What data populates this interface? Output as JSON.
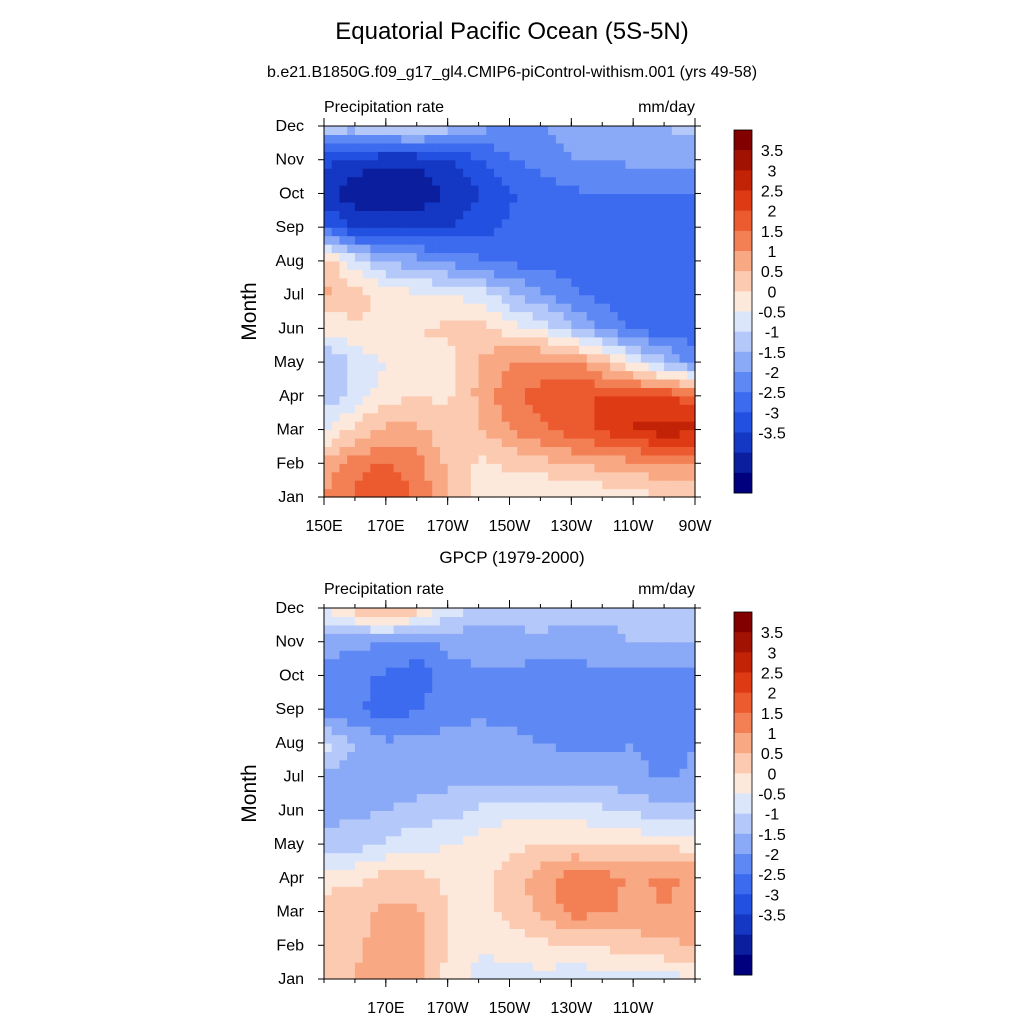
{
  "title": "Equatorial Pacific Ocean (5S-5N)",
  "subtitle": "b.e21.B1850G.f09_g17_gl4.CMIP6-piControl-withism.001 (yrs 49-58)",
  "colors": {
    "bin_colors": [
      "#00007f",
      "#0a1e9e",
      "#1437c4",
      "#2250e0",
      "#3d6bef",
      "#5e88f3",
      "#8aa9f6",
      "#b4c8f9",
      "#dbe6fb",
      "#fde8dc",
      "#fccab0",
      "#f8a883",
      "#f37f55",
      "#ec5a2f",
      "#de3a14",
      "#c22306",
      "#a11203",
      "#820000"
    ]
  },
  "chart_data": [
    {
      "type": "heatmap",
      "panel_title": "",
      "left_label": "Precipitation rate",
      "right_label": "mm/day",
      "ylabel": "Month",
      "x_ticks": [
        "150E",
        "170E",
        "170W",
        "150W",
        "130W",
        "110W",
        "90W"
      ],
      "y_ticks": [
        "Jan",
        "Feb",
        "Mar",
        "Apr",
        "May",
        "Jun",
        "Jul",
        "Aug",
        "Sep",
        "Oct",
        "Nov",
        "Dec"
      ],
      "colorbar_labels": [
        "3.5",
        "3",
        "2.5",
        "2",
        "1.5",
        "1",
        "0.5",
        "0",
        "-0.5",
        "-1",
        "-1.5",
        "-2",
        "-2.5",
        "-3",
        "-3.5"
      ],
      "x_range": [
        "150E",
        "90W"
      ],
      "y_range": [
        "Jan",
        "Dec"
      ],
      "x_grid": [
        "150E",
        "160E",
        "170E",
        "180",
        "170W",
        "160W",
        "150W",
        "140W",
        "130W",
        "120W",
        "110W",
        "100W",
        "90W"
      ],
      "values": [
        [
          2.0,
          2.6,
          3.0,
          2.4,
          1.6,
          0.8,
          0.5,
          0.4,
          0.4,
          0.6,
          0.8,
          1.0,
          1.0
        ],
        [
          1.8,
          2.2,
          2.6,
          2.2,
          1.4,
          0.9,
          1.1,
          1.3,
          1.5,
          1.7,
          1.8,
          1.9,
          2.0
        ],
        [
          0.3,
          1.2,
          1.6,
          1.6,
          1.2,
          1.4,
          2.0,
          2.4,
          2.8,
          3.1,
          3.6,
          3.8,
          3.6
        ],
        [
          -0.3,
          0.2,
          0.8,
          1.0,
          0.9,
          1.6,
          2.4,
          2.7,
          3.0,
          3.0,
          3.0,
          3.0,
          2.8
        ],
        [
          -0.5,
          0.1,
          0.5,
          0.7,
          0.8,
          1.5,
          2.0,
          2.2,
          2.1,
          1.5,
          0.5,
          -0.4,
          -1.2
        ],
        [
          0.6,
          0.9,
          1.0,
          1.0,
          1.1,
          1.3,
          0.8,
          0.4,
          -0.3,
          -1.0,
          -1.6,
          -1.8,
          -1.8
        ],
        [
          1.6,
          1.2,
          0.8,
          0.6,
          0.5,
          0.3,
          -0.4,
          -0.9,
          -1.4,
          -1.7,
          -1.8,
          -1.8,
          -1.8
        ],
        [
          1.4,
          0.2,
          -0.5,
          -0.8,
          -1.1,
          -1.4,
          -1.6,
          -1.7,
          -1.7,
          -1.8,
          -1.8,
          -1.8,
          -1.8
        ],
        [
          -1.8,
          -2.5,
          -2.6,
          -2.6,
          -2.5,
          -2.2,
          -1.9,
          -1.8,
          -1.7,
          -1.7,
          -1.7,
          -1.7,
          -1.8
        ],
        [
          -2.8,
          -3.4,
          -3.5,
          -3.4,
          -3.0,
          -2.5,
          -2.1,
          -1.8,
          -1.6,
          -1.5,
          -1.5,
          -1.5,
          -1.6
        ],
        [
          -2.4,
          -2.7,
          -2.9,
          -2.9,
          -2.6,
          -2.1,
          -1.6,
          -1.3,
          -1.0,
          -1.0,
          -0.9,
          -0.8,
          -0.7
        ],
        [
          -0.2,
          -0.2,
          0.1,
          0.2,
          -0.2,
          -0.8,
          -1.0,
          -1.0,
          -0.8,
          -0.7,
          -0.6,
          -0.5,
          -0.4
        ]
      ]
    },
    {
      "type": "heatmap",
      "panel_title": "GPCP (1979-2000)",
      "left_label": "Precipitation rate",
      "right_label": "mm/day",
      "ylabel": "Month",
      "x_ticks": [
        "170E",
        "170W",
        "150W",
        "130W",
        "110W"
      ],
      "y_ticks": [
        "Jan",
        "Feb",
        "Mar",
        "Apr",
        "May",
        "Jun",
        "Jul",
        "Aug",
        "Sep",
        "Oct",
        "Nov",
        "Dec"
      ],
      "colorbar_labels": [
        "3.5",
        "3",
        "2.5",
        "2",
        "1.5",
        "1",
        "0.5",
        "0",
        "-0.5",
        "-1",
        "-1.5",
        "-2",
        "-2.5",
        "-3",
        "-3.5"
      ],
      "x_range": [
        "150E",
        "90W"
      ],
      "y_range": [
        "Jan",
        "Dec"
      ],
      "x_grid": [
        "150E",
        "160E",
        "170E",
        "180",
        "170W",
        "160W",
        "150W",
        "140W",
        "130W",
        "120W",
        "110W",
        "100W",
        "90W"
      ],
      "values": [
        [
          1.4,
          1.5,
          1.9,
          1.7,
          0.8,
          0.4,
          0.3,
          0.3,
          0.2,
          0.2,
          0.2,
          0.3,
          0.4
        ],
        [
          1.3,
          1.4,
          1.7,
          1.6,
          1.0,
          0.5,
          0.7,
          0.9,
          0.9,
          1.1,
          1.2,
          1.4,
          1.5
        ],
        [
          1.1,
          1.3,
          1.6,
          1.6,
          1.0,
          0.7,
          1.2,
          1.6,
          2.2,
          2.1,
          1.8,
          2.0,
          1.7
        ],
        [
          0.9,
          0.9,
          1.2,
          1.2,
          0.9,
          0.8,
          1.2,
          1.8,
          2.2,
          2.2,
          1.9,
          2.1,
          1.9
        ],
        [
          -0.3,
          -0.2,
          0.1,
          0.3,
          0.5,
          0.7,
          0.9,
          1.0,
          1.1,
          1.0,
          0.9,
          0.9,
          0.8
        ],
        [
          -0.7,
          -0.6,
          -0.5,
          -0.3,
          -0.2,
          0.1,
          0.3,
          0.4,
          0.3,
          0.1,
          -0.1,
          -0.3,
          -0.4
        ],
        [
          -0.6,
          -0.7,
          -0.8,
          -0.8,
          -0.7,
          -0.7,
          -0.7,
          -0.7,
          -0.8,
          -0.8,
          -0.8,
          -1.1,
          -0.9
        ],
        [
          0.2,
          -0.5,
          -0.9,
          -0.9,
          -0.8,
          -0.8,
          -0.9,
          -1.0,
          -1.1,
          -1.1,
          -1.0,
          -1.2,
          -1.0
        ],
        [
          -1.3,
          -1.4,
          -1.8,
          -1.5,
          -1.2,
          -1.1,
          -1.1,
          -1.2,
          -1.2,
          -1.3,
          -1.2,
          -1.3,
          -1.1
        ],
        [
          -1.2,
          -1.3,
          -1.6,
          -1.9,
          -1.2,
          -1.1,
          -1.1,
          -1.3,
          -1.3,
          -1.2,
          -1.1,
          -1.2,
          -1.1
        ],
        [
          -0.8,
          -0.9,
          -1.0,
          -1.0,
          -0.9,
          -0.8,
          -0.7,
          -0.6,
          -0.6,
          -0.6,
          -0.5,
          -0.5,
          -0.5
        ],
        [
          0.4,
          1.3,
          1.9,
          1.2,
          0.3,
          -0.1,
          -0.2,
          -0.3,
          -0.4,
          -0.4,
          -0.4,
          -0.4,
          -0.4
        ]
      ]
    }
  ]
}
